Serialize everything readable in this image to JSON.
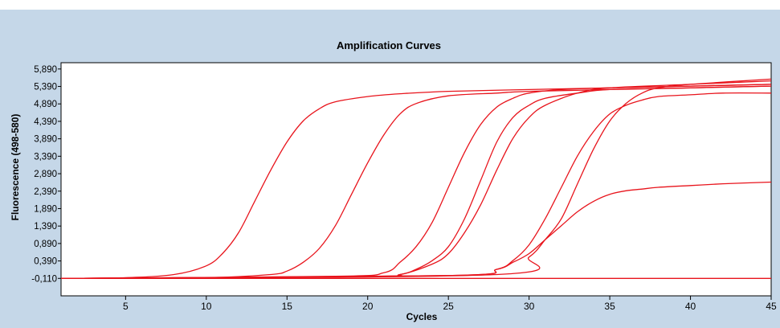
{
  "chart_data": {
    "type": "line",
    "title": "Amplification Curves",
    "xlabel": "Cycles",
    "ylabel": "Fluorescence (498-580)",
    "xlim": [
      1,
      45
    ],
    "ylim": [
      -0.61,
      6.07
    ],
    "x_ticks": [
      5,
      10,
      15,
      20,
      25,
      30,
      35,
      40,
      45
    ],
    "y_ticks": [
      -0.11,
      0.39,
      0.89,
      1.39,
      1.89,
      2.39,
      2.89,
      3.39,
      3.89,
      4.39,
      4.89,
      5.39,
      5.89
    ],
    "y_tick_labels": [
      "-0,110",
      "0,390",
      "0,890",
      "1,390",
      "1,890",
      "2,390",
      "2,890",
      "3,390",
      "3,890",
      "4,390",
      "4,890",
      "5,390",
      "5,890"
    ],
    "x_tick_labels": [
      "5",
      "10",
      "15",
      "20",
      "25",
      "30",
      "35",
      "40",
      "45"
    ],
    "grid": false,
    "line_color": "#e8141c",
    "series": [
      {
        "x": [
          1,
          5,
          8,
          10,
          11,
          12,
          13,
          14,
          15,
          16,
          17,
          18,
          20,
          22,
          25,
          30,
          35,
          40,
          45
        ],
        "y": [
          -0.11,
          -0.09,
          0.0,
          0.25,
          0.6,
          1.2,
          2.1,
          3.0,
          3.8,
          4.4,
          4.75,
          4.95,
          5.1,
          5.18,
          5.25,
          5.3,
          5.35,
          5.4,
          5.45
        ]
      },
      {
        "x": [
          1,
          10,
          14,
          15,
          16,
          17,
          18,
          19,
          20,
          21,
          22,
          23,
          25,
          28,
          30,
          35,
          40,
          45
        ],
        "y": [
          -0.11,
          -0.09,
          0.0,
          0.1,
          0.35,
          0.75,
          1.4,
          2.3,
          3.2,
          4.0,
          4.6,
          4.9,
          5.12,
          5.2,
          5.25,
          5.3,
          5.35,
          5.4
        ]
      },
      {
        "x": [
          1,
          18,
          21,
          22,
          23,
          24,
          25,
          26,
          27,
          28,
          29,
          30,
          32,
          35,
          40,
          45
        ],
        "y": [
          -0.11,
          -0.05,
          0.05,
          0.35,
          0.8,
          1.5,
          2.5,
          3.5,
          4.3,
          4.8,
          5.05,
          5.2,
          5.3,
          5.35,
          5.4,
          5.45
        ]
      },
      {
        "x": [
          1,
          20,
          22,
          23,
          24,
          25,
          26,
          27,
          28,
          29,
          30,
          31,
          33,
          35,
          40,
          45
        ],
        "y": [
          -0.11,
          -0.05,
          0.0,
          0.15,
          0.4,
          0.8,
          1.6,
          2.7,
          3.8,
          4.5,
          4.85,
          5.05,
          5.2,
          5.3,
          5.35,
          5.4
        ]
      },
      {
        "x": [
          1,
          20,
          22,
          24,
          25,
          26,
          27,
          28,
          29,
          30,
          31,
          33,
          35,
          40,
          45
        ],
        "y": [
          -0.11,
          -0.06,
          0.0,
          0.3,
          0.6,
          1.2,
          2.0,
          3.0,
          3.9,
          4.5,
          4.85,
          5.2,
          5.35,
          5.45,
          5.55
        ]
      },
      {
        "x": [
          1,
          25,
          28,
          29,
          30,
          31,
          32,
          33,
          34,
          35,
          36,
          37,
          38,
          40,
          42,
          45
        ],
        "y": [
          -0.11,
          -0.03,
          0.15,
          0.4,
          0.85,
          1.6,
          2.5,
          3.4,
          4.1,
          4.6,
          4.85,
          5.0,
          5.1,
          5.15,
          5.2,
          5.2
        ]
      },
      {
        "x": [
          1,
          25,
          28,
          29,
          30,
          31,
          32,
          33,
          34,
          35,
          36,
          37,
          38,
          40,
          42,
          45
        ],
        "y": [
          -0.11,
          -0.03,
          0.15,
          0.35,
          0.6,
          1.0,
          1.4,
          1.8,
          2.1,
          2.3,
          2.4,
          2.45,
          2.5,
          2.55,
          2.6,
          2.65
        ]
      },
      {
        "x": [
          1,
          28,
          30,
          31,
          32,
          33,
          34,
          35,
          36,
          37,
          38,
          40,
          45
        ],
        "y": [
          -0.11,
          0.0,
          0.5,
          1.0,
          1.6,
          2.6,
          3.6,
          4.4,
          4.9,
          5.2,
          5.35,
          5.45,
          5.6
        ]
      },
      {
        "x": [
          1,
          10,
          20,
          30,
          40,
          45
        ],
        "y": [
          -0.11,
          -0.11,
          -0.11,
          -0.11,
          -0.11,
          -0.11
        ]
      }
    ]
  }
}
